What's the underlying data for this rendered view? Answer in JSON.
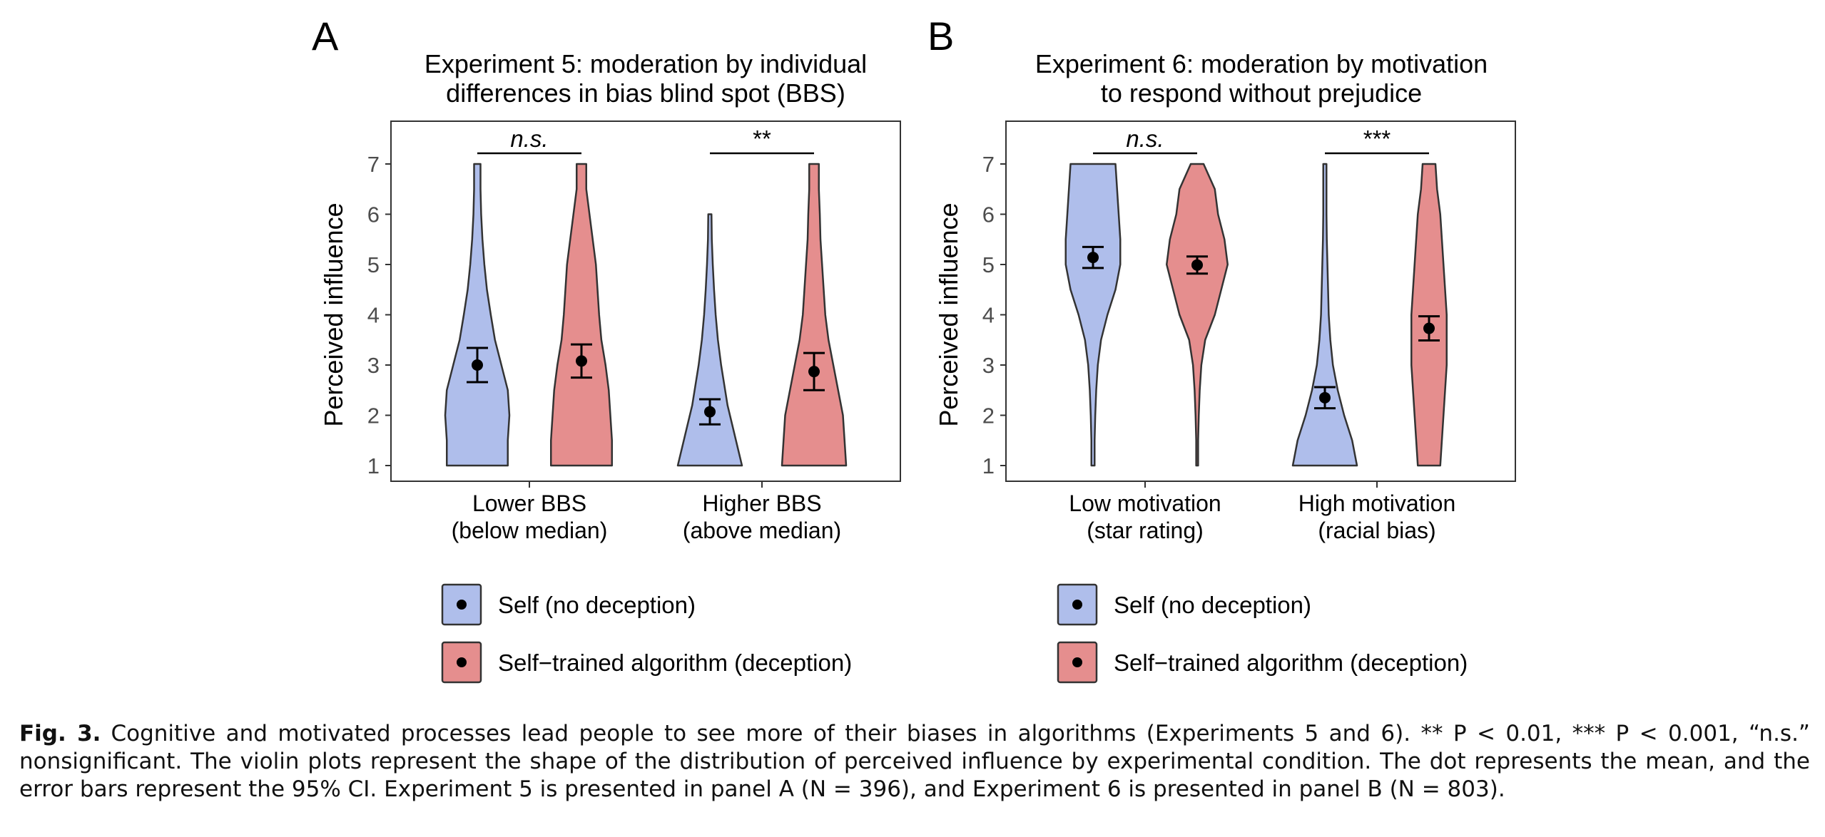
{
  "colors": {
    "self": "#AFBEEB",
    "algorithm": "#E58E8E",
    "outline": "#333333",
    "mark": "#000000"
  },
  "legend": {
    "self_label": "Self (no deception)",
    "algorithm_label": "Self−trained algorithm (deception)"
  },
  "caption": {
    "label": "Fig. 3.",
    "text": "Cognitive and motivated processes lead people to see more of their biases in algorithms (Experiments 5 and 6). ** P < 0.01, *** P < 0.001, “n.s.” nonsignificant. The violin plots represent the shape of the distribution of perceived influence by experimental condition. The dot represents the mean, and the error bars represent the 95% CI. Experiment 5 is presented in panel A (N = 396), and Experiment 6 is presented in panel B (N = 803)."
  },
  "chart_data": [
    {
      "type": "violin",
      "panel_letter": "A",
      "title": [
        "Experiment 5: moderation by individual",
        "differences in bias blind spot (BBS)"
      ],
      "ylabel": "Perceived influence",
      "ylim": [
        1,
        7
      ],
      "yticks": [
        "1",
        "2",
        "3",
        "4",
        "5",
        "6",
        "7"
      ],
      "categories": [
        {
          "lines": [
            "Lower BBS",
            "(below median)"
          ],
          "significance": "n.s."
        },
        {
          "lines": [
            "Higher BBS",
            "(above median)"
          ],
          "significance": "**"
        }
      ],
      "series": [
        {
          "name": "Self (no deception)",
          "groups": [
            {
              "mean": 3.0,
              "ci": [
                2.66,
                3.34
              ],
              "min": 1,
              "max": 7,
              "profile": [
                [
                  1,
                  0.95
                ],
                [
                  1.5,
                  0.95
                ],
                [
                  2,
                  1.0
                ],
                [
                  2.5,
                  0.95
                ],
                [
                  3,
                  0.75
                ],
                [
                  3.5,
                  0.55
                ],
                [
                  4,
                  0.42
                ],
                [
                  4.5,
                  0.3
                ],
                [
                  5,
                  0.22
                ],
                [
                  5.5,
                  0.16
                ],
                [
                  6,
                  0.12
                ],
                [
                  6.5,
                  0.1
                ],
                [
                  7,
                  0.1
                ]
              ]
            },
            {
              "mean": 2.07,
              "ci": [
                1.82,
                2.32
              ],
              "min": 1,
              "max": 6,
              "profile": [
                [
                  1,
                  1.0
                ],
                [
                  1.4,
                  0.85
                ],
                [
                  1.8,
                  0.7
                ],
                [
                  2.2,
                  0.55
                ],
                [
                  2.6,
                  0.45
                ],
                [
                  3,
                  0.35
                ],
                [
                  3.5,
                  0.25
                ],
                [
                  4,
                  0.18
                ],
                [
                  4.5,
                  0.13
                ],
                [
                  5,
                  0.09
                ],
                [
                  5.5,
                  0.06
                ],
                [
                  6,
                  0.05
                ]
              ]
            }
          ]
        },
        {
          "name": "Self−trained algorithm (deception)",
          "groups": [
            {
              "mean": 3.08,
              "ci": [
                2.75,
                3.41
              ],
              "min": 1,
              "max": 7,
              "profile": [
                [
                  1,
                  0.95
                ],
                [
                  1.5,
                  0.95
                ],
                [
                  2,
                  0.9
                ],
                [
                  2.5,
                  0.85
                ],
                [
                  3,
                  0.75
                ],
                [
                  3.5,
                  0.62
                ],
                [
                  4,
                  0.55
                ],
                [
                  4.5,
                  0.5
                ],
                [
                  5,
                  0.45
                ],
                [
                  5.5,
                  0.35
                ],
                [
                  6,
                  0.25
                ],
                [
                  6.5,
                  0.15
                ],
                [
                  7,
                  0.15
                ]
              ]
            },
            {
              "mean": 2.87,
              "ci": [
                2.5,
                3.24
              ],
              "min": 1,
              "max": 7,
              "profile": [
                [
                  1,
                  1.0
                ],
                [
                  1.5,
                  0.95
                ],
                [
                  2,
                  0.9
                ],
                [
                  2.5,
                  0.75
                ],
                [
                  3,
                  0.6
                ],
                [
                  3.5,
                  0.45
                ],
                [
                  4,
                  0.35
                ],
                [
                  4.5,
                  0.3
                ],
                [
                  5,
                  0.25
                ],
                [
                  5.5,
                  0.2
                ],
                [
                  6,
                  0.18
                ],
                [
                  6.5,
                  0.15
                ],
                [
                  7,
                  0.15
                ]
              ]
            }
          ]
        }
      ]
    },
    {
      "type": "violin",
      "panel_letter": "B",
      "title": [
        "Experiment 6: moderation by motivation",
        "to respond without prejudice"
      ],
      "ylabel": "Perceived influence",
      "ylim": [
        1,
        7
      ],
      "yticks": [
        "1",
        "2",
        "3",
        "4",
        "5",
        "6",
        "7"
      ],
      "categories": [
        {
          "lines": [
            "Low motivation",
            "(star rating)"
          ],
          "significance": "n.s."
        },
        {
          "lines": [
            "High motivation",
            "(racial bias)"
          ],
          "significance": "***"
        }
      ],
      "series": [
        {
          "name": "Self (no deception)",
          "groups": [
            {
              "mean": 5.14,
              "ci": [
                4.93,
                5.35
              ],
              "min": 1,
              "max": 7,
              "profile": [
                [
                  1,
                  0.05
                ],
                [
                  1.5,
                  0.05
                ],
                [
                  2,
                  0.07
                ],
                [
                  2.5,
                  0.1
                ],
                [
                  3,
                  0.15
                ],
                [
                  3.5,
                  0.25
                ],
                [
                  4,
                  0.45
                ],
                [
                  4.5,
                  0.7
                ],
                [
                  5,
                  0.85
                ],
                [
                  5.5,
                  0.85
                ],
                [
                  6,
                  0.8
                ],
                [
                  6.5,
                  0.75
                ],
                [
                  7,
                  0.7
                ]
              ]
            },
            {
              "mean": 2.35,
              "ci": [
                2.14,
                2.56
              ],
              "min": 1,
              "max": 7,
              "profile": [
                [
                  1,
                  1.0
                ],
                [
                  1.5,
                  0.85
                ],
                [
                  2,
                  0.6
                ],
                [
                  2.5,
                  0.4
                ],
                [
                  3,
                  0.25
                ],
                [
                  3.5,
                  0.17
                ],
                [
                  4,
                  0.12
                ],
                [
                  4.5,
                  0.1
                ],
                [
                  5,
                  0.08
                ],
                [
                  5.5,
                  0.06
                ],
                [
                  6,
                  0.05
                ],
                [
                  6.5,
                  0.05
                ],
                [
                  7,
                  0.05
                ]
              ]
            }
          ]
        },
        {
          "name": "Self−trained algorithm (deception)",
          "groups": [
            {
              "mean": 4.99,
              "ci": [
                4.82,
                5.16
              ],
              "min": 1,
              "max": 7,
              "profile": [
                [
                  1,
                  0.03
                ],
                [
                  1.5,
                  0.03
                ],
                [
                  2,
                  0.05
                ],
                [
                  2.5,
                  0.08
                ],
                [
                  3,
                  0.13
                ],
                [
                  3.5,
                  0.25
                ],
                [
                  4,
                  0.55
                ],
                [
                  4.5,
                  0.75
                ],
                [
                  5,
                  0.95
                ],
                [
                  5.5,
                  0.85
                ],
                [
                  6,
                  0.65
                ],
                [
                  6.5,
                  0.55
                ],
                [
                  7,
                  0.2
                ]
              ]
            },
            {
              "mean": 3.73,
              "ci": [
                3.49,
                3.97
              ],
              "min": 1,
              "max": 7,
              "profile": [
                [
                  1,
                  0.35
                ],
                [
                  1.5,
                  0.4
                ],
                [
                  2,
                  0.45
                ],
                [
                  2.5,
                  0.5
                ],
                [
                  3,
                  0.55
                ],
                [
                  3.5,
                  0.55
                ],
                [
                  4,
                  0.55
                ],
                [
                  4.5,
                  0.5
                ],
                [
                  5,
                  0.45
                ],
                [
                  5.5,
                  0.4
                ],
                [
                  6,
                  0.35
                ],
                [
                  6.5,
                  0.25
                ],
                [
                  7,
                  0.2
                ]
              ]
            }
          ]
        }
      ]
    }
  ]
}
